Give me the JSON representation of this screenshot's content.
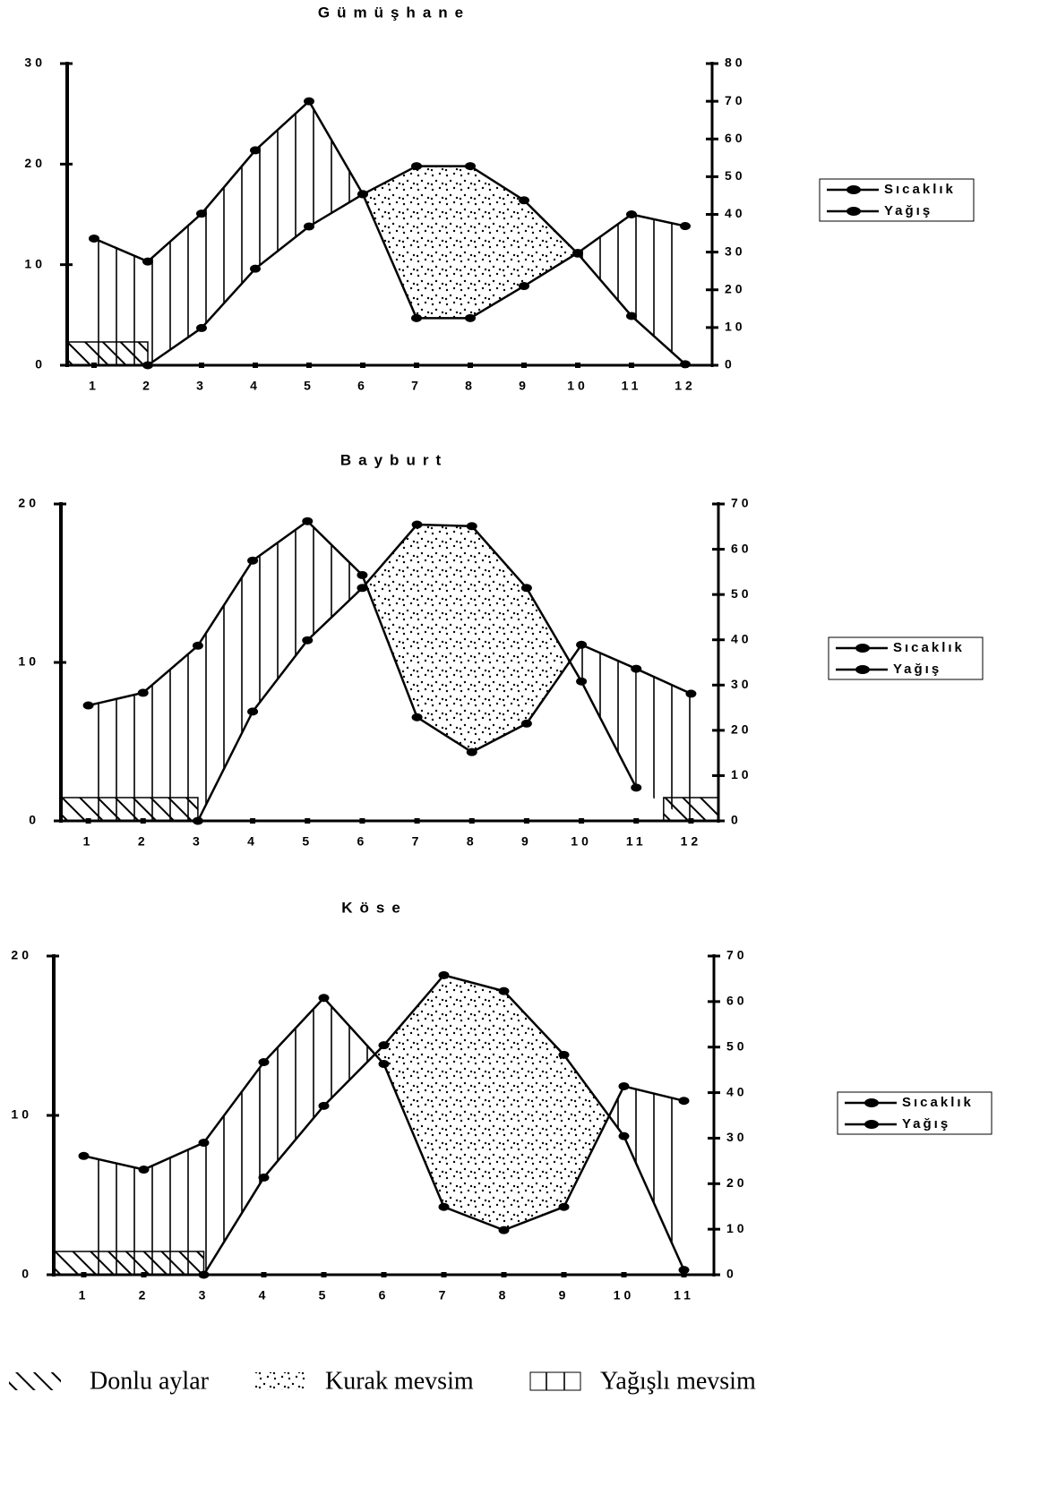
{
  "chart_data": [
    {
      "type": "line",
      "title": "Gümüşhane",
      "legend": "right",
      "categories": [
        "1",
        "2",
        "3",
        "4",
        "5",
        "6",
        "7",
        "8",
        "9",
        "10",
        "11",
        "12"
      ],
      "ylim": [
        0,
        30
      ],
      "yticks": [
        0,
        10,
        20,
        30
      ],
      "y2lim": [
        0,
        80
      ],
      "y2ticks": [
        0,
        10,
        20,
        30,
        40,
        50,
        60,
        70,
        80
      ],
      "series": [
        {
          "name": "Sıcaklık",
          "color": "#000000",
          "values": [
            null,
            0,
            3.7,
            9.6,
            13.8,
            17.0,
            19.8,
            19.8,
            16.4,
            11.1,
            4.9,
            0.1
          ]
        },
        {
          "name": "Yağış",
          "color": "#000000",
          "axis": "y2",
          "values": [
            33.6,
            27.5,
            40.2,
            57,
            70,
            45.4,
            12.5,
            12.5,
            21,
            29.8,
            40,
            36.9
          ]
        }
      ]
    },
    {
      "type": "line",
      "title": "Bayburt",
      "legend": "right",
      "categories": [
        "1",
        "2",
        "3",
        "4",
        "5",
        "6",
        "7",
        "8",
        "9",
        "10",
        "11",
        "12"
      ],
      "ylim": [
        0,
        20
      ],
      "yticks": [
        0,
        10,
        20
      ],
      "y2lim": [
        0,
        70
      ],
      "y2ticks": [
        0,
        10,
        20,
        30,
        40,
        50,
        60,
        70
      ],
      "series": [
        {
          "name": "Sıcaklık",
          "color": "#000000",
          "values": [
            null,
            null,
            0,
            6.9,
            11.4,
            14.7,
            18.7,
            18.6,
            14.7,
            8.8,
            2.1,
            null
          ]
        },
        {
          "name": "Yağış",
          "color": "#000000",
          "axis": "y2",
          "values": [
            25.5,
            28.3,
            38.7,
            57.5,
            66.2,
            54.3,
            22.9,
            15.2,
            21.5,
            38.9,
            33.6,
            28.1
          ]
        }
      ]
    },
    {
      "type": "line",
      "title": "Köse",
      "legend": "right",
      "categories": [
        "1",
        "2",
        "3",
        "4",
        "5",
        "6",
        "7",
        "8",
        "9",
        "10",
        "11"
      ],
      "ylim": [
        0,
        20
      ],
      "yticks": [
        0,
        10,
        20
      ],
      "y2lim": [
        0,
        70
      ],
      "y2ticks": [
        0,
        10,
        20,
        30,
        40,
        50,
        60,
        70
      ],
      "series": [
        {
          "name": "Sıcaklık",
          "color": "#000000",
          "values": [
            null,
            null,
            0,
            6.1,
            10.6,
            14.4,
            18.8,
            17.8,
            13.8,
            8.7,
            0.3
          ]
        },
        {
          "name": "Yağış",
          "color": "#000000",
          "axis": "y2",
          "values": [
            26.1,
            23.1,
            29,
            46.7,
            60.8,
            46.3,
            14.9,
            9.8,
            14.9,
            41.4,
            38.2
          ]
        }
      ]
    }
  ],
  "footnote_legend": [
    "Donlu aylar",
    "Kurak mevsim",
    "Yağışlı mevsim"
  ]
}
